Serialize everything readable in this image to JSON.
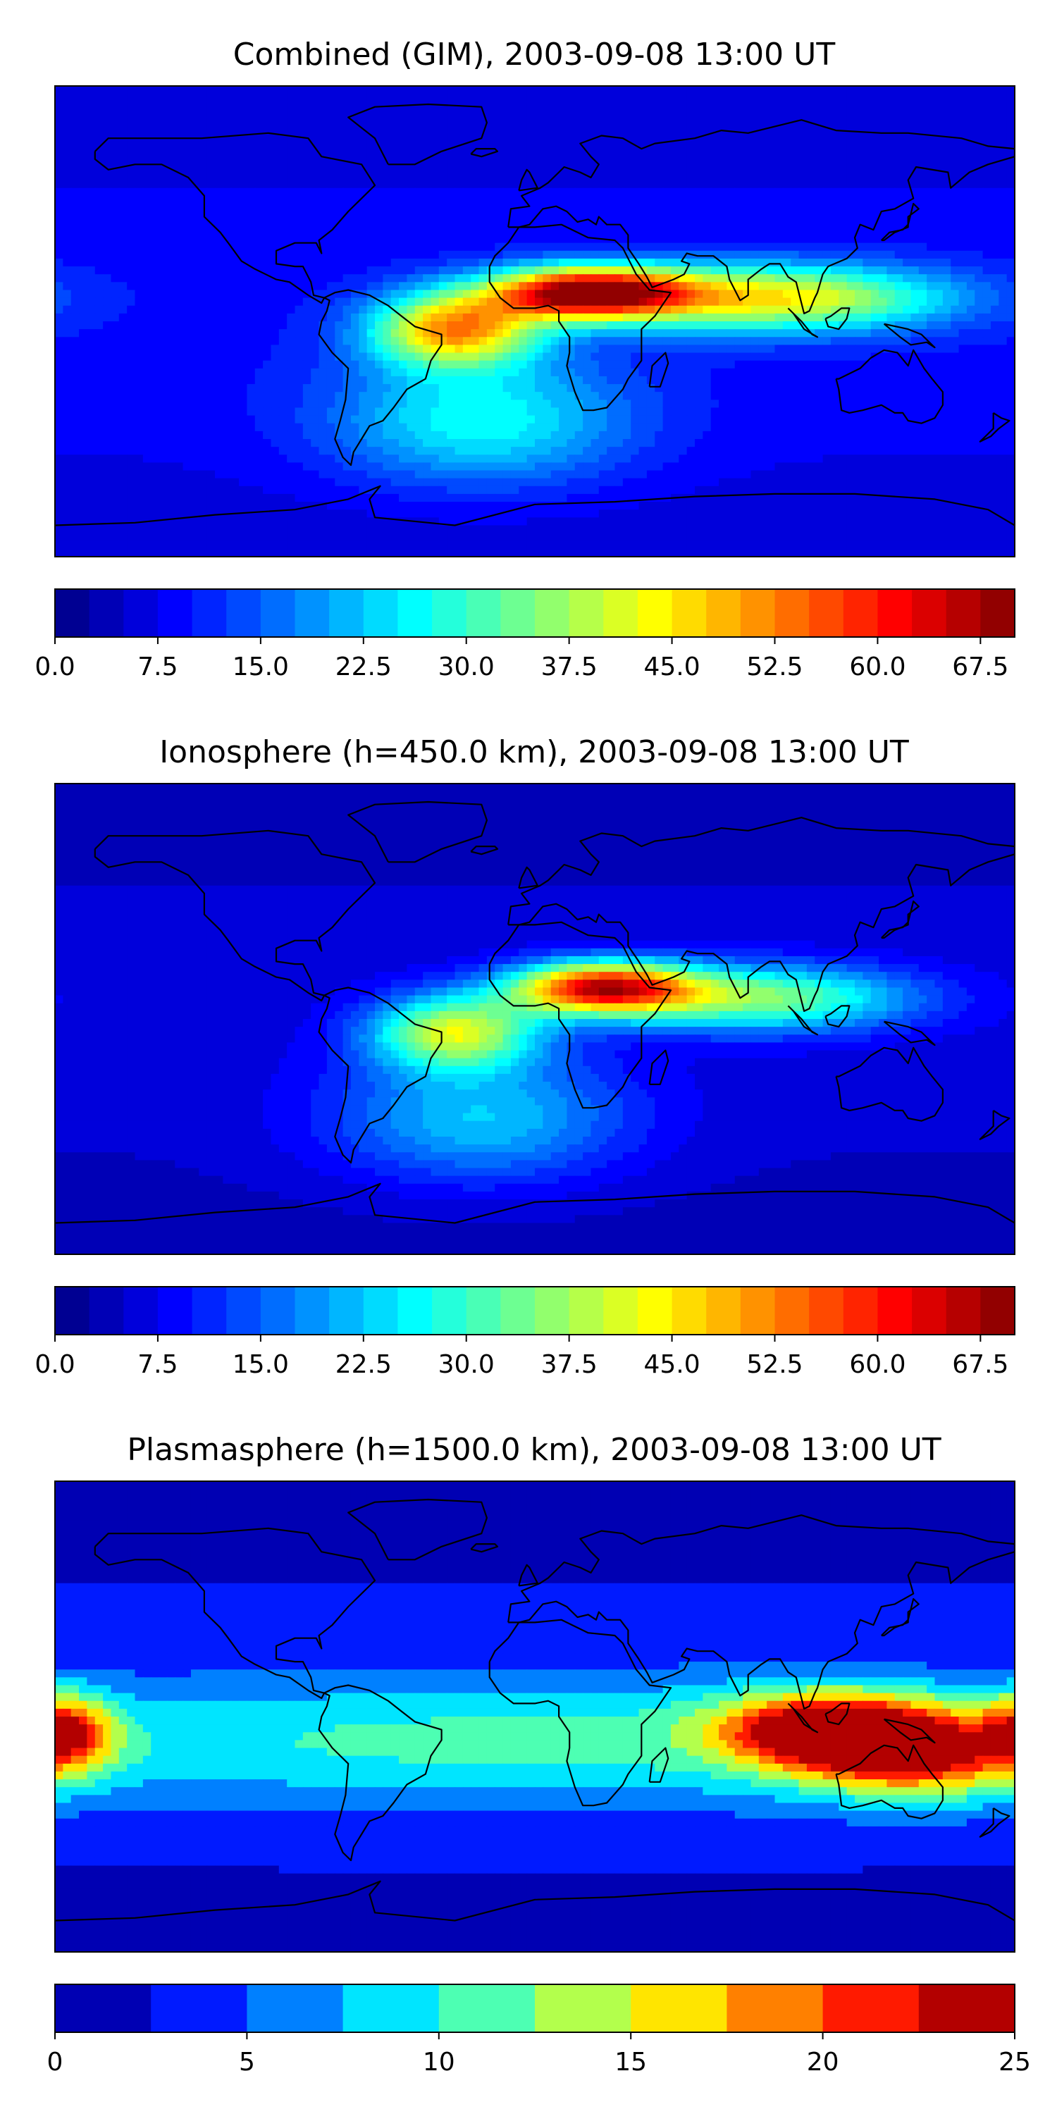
{
  "figure": {
    "panels": [
      {
        "id": "gim",
        "title": "Combined (GIM), 2003-09-08 13:00 UT",
        "colorbar": {
          "cmap": "jet",
          "min": 0,
          "max": 70,
          "levels": 28,
          "tick_values": [
            0,
            7.5,
            15,
            22.5,
            30,
            37.5,
            45,
            52.5,
            60,
            67.5
          ],
          "tick_labels": [
            "0.0",
            "7.5",
            "15.0",
            "22.5",
            "30.0",
            "37.5",
            "45.0",
            "52.5",
            "60.0",
            "67.5"
          ]
        }
      },
      {
        "id": "ionosphere",
        "title": "Ionosphere  (h=450.0 km), 2003-09-08 13:00 UT",
        "colorbar": {
          "cmap": "jet",
          "min": 0,
          "max": 70,
          "levels": 28,
          "tick_values": [
            0,
            7.5,
            15,
            22.5,
            30,
            37.5,
            45,
            52.5,
            60,
            67.5
          ],
          "tick_labels": [
            "0.0",
            "7.5",
            "15.0",
            "22.5",
            "30.0",
            "37.5",
            "45.0",
            "52.5",
            "60.0",
            "67.5"
          ]
        }
      },
      {
        "id": "plasmasphere",
        "title": "Plasmasphere (h=1500.0 km), 2003-09-08 13:00 UT",
        "colorbar": {
          "cmap": "jet",
          "min": 0,
          "max": 25,
          "levels": 10,
          "tick_values": [
            0,
            5,
            10,
            15,
            20,
            25
          ],
          "tick_labels": [
            "0",
            "5",
            "10",
            "15",
            "20",
            "25"
          ]
        }
      }
    ]
  },
  "chart_data": [
    {
      "type": "heatmap",
      "title": "Combined (GIM), 2003-09-08 13:00 UT",
      "xlabel": "",
      "ylabel": "",
      "xlim": [
        -180,
        180
      ],
      "ylim": [
        -90,
        90
      ],
      "vmin": 0,
      "vmax": 70,
      "features": [
        {
          "lon": 20,
          "lat": 11,
          "value": 68,
          "sx": 26,
          "sy": 7
        },
        {
          "lon": -30,
          "lat": -3,
          "value": 50,
          "sx": 22,
          "sy": 10
        },
        {
          "lon": 90,
          "lat": 9,
          "value": 45,
          "sx": 45,
          "sy": 9
        },
        {
          "lon": -20,
          "lat": -40,
          "value": 30,
          "sx": 40,
          "sy": 18
        }
      ],
      "background": 9
    },
    {
      "type": "heatmap",
      "title": "Ionosphere  (h=450.0 km), 2003-09-08 13:00 UT",
      "xlabel": "",
      "ylabel": "",
      "xlim": [
        -180,
        180
      ],
      "ylim": [
        -90,
        90
      ],
      "vmin": 0,
      "vmax": 70,
      "features": [
        {
          "lon": 25,
          "lat": 12,
          "value": 60,
          "sx": 24,
          "sy": 7
        },
        {
          "lon": -30,
          "lat": -5,
          "value": 40,
          "sx": 22,
          "sy": 10
        },
        {
          "lon": 85,
          "lat": 8,
          "value": 35,
          "sx": 40,
          "sy": 9
        },
        {
          "lon": -20,
          "lat": -40,
          "value": 25,
          "sx": 40,
          "sy": 18
        }
      ],
      "background": 6
    },
    {
      "type": "heatmap",
      "title": "Plasmasphere (h=1500.0 km), 2003-09-08 13:00 UT",
      "xlabel": "",
      "ylabel": "",
      "xlim": [
        -180,
        180
      ],
      "ylim": [
        -90,
        90
      ],
      "vmin": 0,
      "vmax": 25,
      "features": [
        {
          "lon": 110,
          "lat": -5,
          "value": 22,
          "sx": 28,
          "sy": 10
        },
        {
          "lon": 145,
          "lat": -15,
          "value": 18,
          "sx": 30,
          "sy": 12
        },
        {
          "lon": 0,
          "lat": -10,
          "value": 11,
          "sx": 180,
          "sy": 18
        },
        {
          "lon": -175,
          "lat": -5,
          "value": 16,
          "sx": 12,
          "sy": 10
        }
      ],
      "background": 3
    }
  ],
  "colors": {
    "coastline": "#000000",
    "frame": "#000000",
    "background": "#ffffff"
  }
}
